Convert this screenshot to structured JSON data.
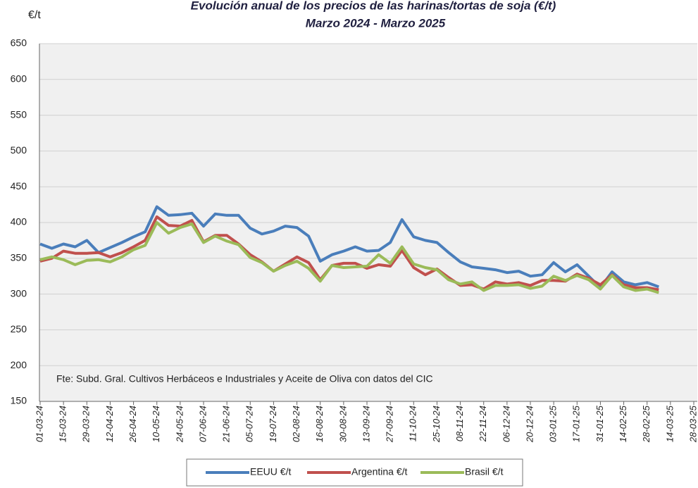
{
  "chart_data": {
    "type": "line",
    "title": "Evolución anual de los precios de las harinas/tortas de soja (€/t)",
    "subtitle": "Marzo 2024 - Marzo 2025",
    "y_label": "€/t",
    "annotation": "Fte: Subd. Gral. Cultivos Herbáceos e Industriales y Aceite de Oliva con datos del CIC",
    "x": [
      "01-03-24",
      "08-03-24",
      "15-03-24",
      "22-03-24",
      "29-03-24",
      "05-04-24",
      "12-04-24",
      "19-04-24",
      "26-04-24",
      "03-05-24",
      "10-05-24",
      "17-05-24",
      "24-05-24",
      "31-05-24",
      "07-06-24",
      "14-06-24",
      "21-06-24",
      "28-06-24",
      "05-07-24",
      "12-07-24",
      "19-07-24",
      "26-07-24",
      "02-08-24",
      "09-08-24",
      "16-08-24",
      "23-08-24",
      "30-08-24",
      "06-09-24",
      "13-09-24",
      "20-09-24",
      "27-09-24",
      "04-10-24",
      "11-10-24",
      "18-10-24",
      "25-10-24",
      "01-11-24",
      "08-11-24",
      "15-11-24",
      "22-11-24",
      "29-11-24",
      "06-12-24",
      "13-12-24",
      "20-12-24",
      "27-12-24",
      "03-01-25",
      "10-01-25",
      "17-01-25",
      "24-01-25",
      "31-01-25",
      "07-02-25",
      "14-02-25",
      "21-02-25",
      "28-02-25",
      "07-03-25"
    ],
    "series": [
      {
        "name": "EEUU €/t",
        "color": "#4a7ebb",
        "values": [
          370,
          364,
          370,
          366,
          375,
          358,
          365,
          372,
          380,
          387,
          422,
          410,
          411,
          413,
          395,
          412,
          410,
          410,
          392,
          384,
          388,
          395,
          393,
          381,
          346,
          355,
          360,
          366,
          360,
          361,
          372,
          404,
          380,
          375,
          372,
          358,
          345,
          338,
          336,
          334,
          330,
          332,
          325,
          327,
          344,
          331,
          341,
          325,
          309,
          331,
          317,
          313,
          316,
          310
        ]
      },
      {
        "name": "Argentina €/t",
        "color": "#c0504d",
        "values": [
          346,
          350,
          360,
          357,
          357,
          358,
          352,
          358,
          366,
          375,
          408,
          396,
          395,
          403,
          373,
          382,
          382,
          370,
          355,
          345,
          332,
          342,
          352,
          344,
          320,
          340,
          343,
          343,
          336,
          341,
          339,
          361,
          337,
          327,
          335,
          323,
          312,
          313,
          307,
          317,
          314,
          316,
          312,
          319,
          319,
          318,
          328,
          322,
          313,
          327,
          313,
          309,
          309,
          306
        ]
      },
      {
        "name": "Brasil €/t",
        "color": "#9bbb59",
        "values": [
          348,
          352,
          348,
          341,
          347,
          348,
          345,
          352,
          362,
          368,
          400,
          385,
          393,
          398,
          372,
          381,
          374,
          369,
          351,
          344,
          332,
          340,
          346,
          336,
          318,
          340,
          337,
          338,
          339,
          355,
          343,
          366,
          342,
          337,
          334,
          320,
          314,
          317,
          305,
          312,
          312,
          313,
          308,
          311,
          325,
          319,
          326,
          320,
          307,
          326,
          310,
          305,
          307,
          302
        ]
      }
    ],
    "xlim": [
      "01-03-24",
      "28-03-25"
    ],
    "xticks": [
      "01-03-24",
      "15-03-24",
      "29-03-24",
      "12-04-24",
      "26-04-24",
      "10-05-24",
      "24-05-24",
      "07-06-24",
      "21-06-24",
      "05-07-24",
      "19-07-24",
      "02-08-24",
      "16-08-24",
      "30-08-24",
      "13-09-24",
      "27-09-24",
      "11-10-24",
      "25-10-24",
      "08-11-24",
      "22-11-24",
      "06-12-24",
      "20-12-24",
      "03-01-25",
      "17-01-25",
      "31-01-25",
      "14-02-25",
      "28-02-25",
      "14-03-25",
      "28-03-25"
    ],
    "ylim": [
      150,
      650
    ],
    "yticks": [
      150,
      200,
      250,
      300,
      350,
      400,
      450,
      500,
      550,
      600,
      650
    ],
    "grid": true
  }
}
